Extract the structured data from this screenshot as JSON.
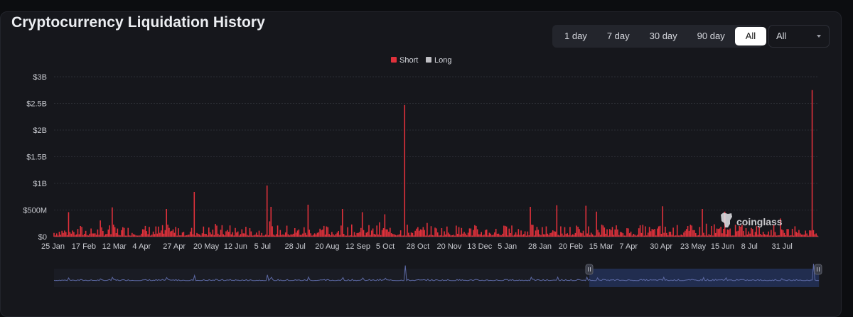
{
  "header": {
    "title": "Cryptocurrency Liquidation History"
  },
  "range_buttons": [
    {
      "label": "1 day",
      "active": false
    },
    {
      "label": "7 day",
      "active": false
    },
    {
      "label": "30 day",
      "active": false
    },
    {
      "label": "90 day",
      "active": false
    },
    {
      "label": "All",
      "active": true
    }
  ],
  "coin_select": {
    "value": "All"
  },
  "watermark": {
    "text": "coinglass"
  },
  "colors": {
    "short": "#e0313b",
    "long": "#bfbfc4",
    "grid": "#2a2c33",
    "axis_text": "#c9cbd1",
    "navigator_line": "#5d6aa6"
  },
  "chart_data": {
    "type": "bar",
    "title": "Cryptocurrency Liquidation History",
    "legend": {
      "placement": "top-center",
      "entries": [
        {
          "name": "Short",
          "color": "#e0313b"
        },
        {
          "name": "Long",
          "color": "#bfbfc4"
        }
      ]
    },
    "grid": true,
    "stacked": true,
    "y_ticks": [
      "$0",
      "$500M",
      "$1B",
      "$1.5B",
      "$2B",
      "$2.5B",
      "$3B"
    ],
    "ylim": [
      0,
      3000000000
    ],
    "x_ticks": [
      "25 Jan",
      "17 Feb",
      "12 Mar",
      "4 Apr",
      "27 Apr",
      "20 May",
      "12 Jun",
      "5 Jul",
      "28 Jul",
      "20 Aug",
      "12 Sep",
      "5 Oct",
      "28 Oct",
      "20 Nov",
      "13 Dec",
      "5 Jan",
      "28 Jan",
      "20 Feb",
      "15 Mar",
      "7 Apr",
      "30 Apr",
      "23 May",
      "15 Jun",
      "8 Jul",
      "31 Jul"
    ],
    "x_tick_index": [
      0,
      23,
      46,
      69,
      92,
      115,
      138,
      161,
      184,
      207,
      230,
      253,
      276,
      299,
      322,
      345,
      368,
      391,
      414,
      437,
      460,
      483,
      506,
      529,
      552
    ],
    "n_days": 578,
    "notable_values": [
      {
        "day": 11,
        "value": 460000000
      },
      {
        "day": 44,
        "value": 550000000
      },
      {
        "day": 85,
        "value": 520000000
      },
      {
        "day": 106,
        "value": 840000000
      },
      {
        "day": 161,
        "value": 960000000
      },
      {
        "day": 164,
        "value": 560000000
      },
      {
        "day": 192,
        "value": 600000000
      },
      {
        "day": 218,
        "value": 520000000
      },
      {
        "day": 233,
        "value": 460000000
      },
      {
        "day": 250,
        "value": 420000000
      },
      {
        "day": 265,
        "value": 2470000000
      },
      {
        "day": 360,
        "value": 560000000
      },
      {
        "day": 380,
        "value": 590000000
      },
      {
        "day": 402,
        "value": 580000000
      },
      {
        "day": 410,
        "value": 470000000
      },
      {
        "day": 460,
        "value": 570000000
      },
      {
        "day": 490,
        "value": 520000000
      },
      {
        "day": 507,
        "value": 470000000
      },
      {
        "day": 573,
        "value": 2750000000
      }
    ]
  }
}
